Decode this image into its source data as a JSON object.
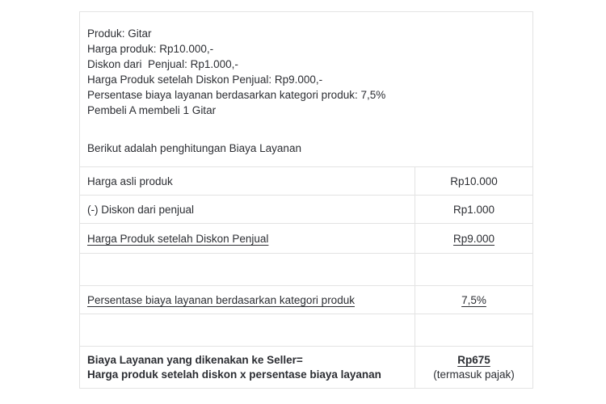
{
  "colors": {
    "background": "#ffffff",
    "border": "#e3e3e3",
    "text": "#2c2e33"
  },
  "intro": {
    "lines": [
      "Produk: Gitar",
      "Harga produk: Rp10.000,-",
      "Diskon dari  Penjual: Rp1.000,-",
      "Harga Produk setelah Diskon Penjual: Rp9.000,-",
      "Persentase biaya layanan berdasarkan kategori produk: 7,5%",
      "Pembeli A membeli 1 Gitar"
    ],
    "subtitle": "Berikut adalah penghitungan Biaya Layanan"
  },
  "table": {
    "rows": [
      {
        "label": "Harga asli produk",
        "value": "Rp10.000"
      },
      {
        "label": "(-) Diskon dari penjual",
        "value": "Rp1.000"
      },
      {
        "label": "Harga Produk setelah Diskon Penjual",
        "value": "Rp9.000"
      },
      {
        "label": "",
        "value": ""
      },
      {
        "label": "Persentase biaya layanan berdasarkan kategori produk",
        "value": "7,5%"
      },
      {
        "label": "",
        "value": ""
      },
      {
        "label_line1": "Biaya Layanan yang dikenakan ke Seller=",
        "label_line2": "Harga produk setelah diskon x persentase biaya layanan",
        "value": "Rp675",
        "value_note": "(termasuk pajak)"
      }
    ]
  }
}
